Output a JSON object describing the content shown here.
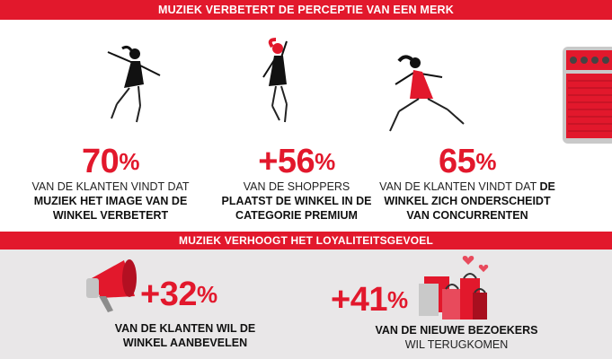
{
  "banners": {
    "top": "MUZIEK VERBETERT DE PERCEPTIE VAN EEN MERK",
    "middle": "MUZIEK VERHOOGT HET LOYALITEITSGEVOEL"
  },
  "stats_top": [
    {
      "value": "70",
      "unit": "%",
      "line1": "VAN DE KLANTEN VINDT DAT",
      "line2": "MUZIEK HET IMAGE VAN DE",
      "line3": "WINKEL VERBETERT"
    },
    {
      "value": "+56",
      "unit": "%",
      "line1": "VAN DE SHOPPERS",
      "line2": "PLAATST DE WINKEL IN DE",
      "line3": "CATEGORIE PREMIUM"
    },
    {
      "value": "65",
      "unit": "%",
      "line1_plain": "VAN DE KLANTEN VINDT DAT ",
      "line1_bold": "DE",
      "line2": "WINKEL ZICH ONDERSCHEIDT",
      "line3": "VAN CONCURRENTEN"
    }
  ],
  "stats_bottom": [
    {
      "value": "+32",
      "unit": "%",
      "line1": "VAN DE KLANTEN WIL DE",
      "line2": "WINKEL AANBEVELEN"
    },
    {
      "value": "+41",
      "unit": "%",
      "line1": "VAN DE NIEUWE BEZOEKERS",
      "line2": "WIL TERUGKOMEN"
    }
  ],
  "icons": [
    "dancing-woman-icon",
    "amplifier-icon",
    "megaphone-icon",
    "shopping-bags-icon",
    "heart-icon"
  ],
  "colors": {
    "accent": "#e2182c",
    "background_bottom": "#e9e7e8"
  }
}
